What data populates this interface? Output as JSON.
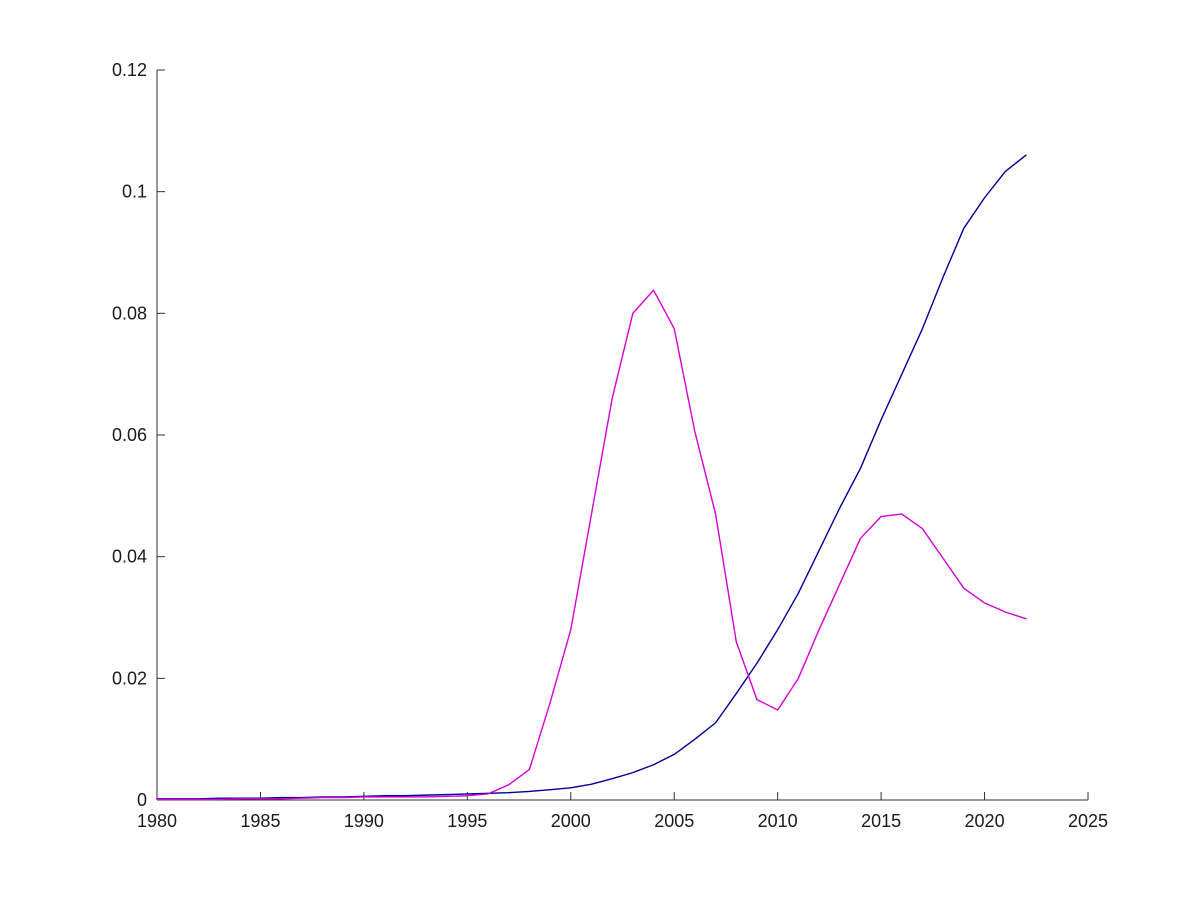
{
  "chart_data": {
    "type": "line",
    "title": "",
    "xlabel": "",
    "ylabel": "",
    "grid": false,
    "legend": "none",
    "xlim": [
      1980,
      2025
    ],
    "ylim": [
      0,
      0.12
    ],
    "x_ticks": [
      1980,
      1985,
      1990,
      1995,
      2000,
      2005,
      2010,
      2015,
      2020,
      2025
    ],
    "x_tick_labels": [
      "1980",
      "1985",
      "1990",
      "1995",
      "2000",
      "2005",
      "2010",
      "2015",
      "2020",
      "2025"
    ],
    "y_ticks": [
      0,
      0.02,
      0.04,
      0.06,
      0.08,
      0.1,
      0.12
    ],
    "y_tick_labels": [
      "0",
      "0.02",
      "0.04",
      "0.06",
      "0.08",
      "0.1",
      "0.12"
    ],
    "x": [
      1980,
      1981,
      1982,
      1983,
      1984,
      1985,
      1986,
      1987,
      1988,
      1989,
      1990,
      1991,
      1992,
      1993,
      1994,
      1995,
      1996,
      1997,
      1998,
      1999,
      2000,
      2001,
      2002,
      2003,
      2004,
      2005,
      2006,
      2007,
      2008,
      2009,
      2010,
      2011,
      2012,
      2013,
      2014,
      2015,
      2016,
      2017,
      2018,
      2019,
      2020,
      2021,
      2022
    ],
    "series": [
      {
        "name": "blue",
        "color": "#000099",
        "values": [
          0.0002,
          0.0002,
          0.0002,
          0.0003,
          0.0003,
          0.0003,
          0.0004,
          0.0004,
          0.0005,
          0.0005,
          0.0006,
          0.0007,
          0.0007,
          0.0008,
          0.0009,
          0.001,
          0.0011,
          0.0012,
          0.0014,
          0.0017,
          0.002,
          0.0026,
          0.0035,
          0.0045,
          0.0058,
          0.0075,
          0.01,
          0.0127,
          0.0175,
          0.0225,
          0.028,
          0.034,
          0.041,
          0.048,
          0.0545,
          0.0625,
          0.07,
          0.0775,
          0.086,
          0.094,
          0.099,
          0.1033,
          0.106
        ]
      },
      {
        "name": "magenta",
        "color": "#D400D4",
        "values": [
          0.0001,
          0.0001,
          0.0001,
          0.0001,
          0.0002,
          0.0002,
          0.0002,
          0.0003,
          0.0004,
          0.0004,
          0.0005,
          0.0005,
          0.0005,
          0.0005,
          0.0006,
          0.0007,
          0.001,
          0.0025,
          0.005,
          0.016,
          0.028,
          0.047,
          0.066,
          0.08,
          0.0838,
          0.0775,
          0.0605,
          0.047,
          0.026,
          0.0165,
          0.0148,
          0.02,
          0.028,
          0.0355,
          0.043,
          0.0466,
          0.047,
          0.0446,
          0.0397,
          0.0348,
          0.0324,
          0.0309,
          0.0298
        ]
      }
    ]
  }
}
